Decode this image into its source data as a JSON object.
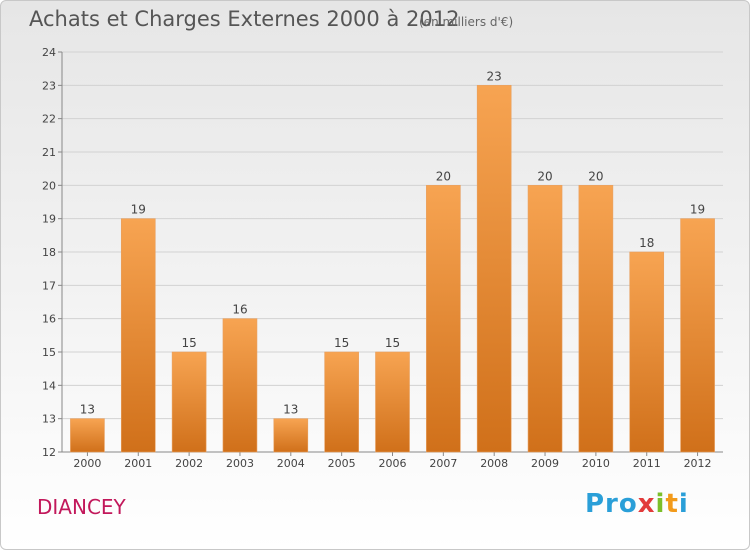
{
  "header": {
    "title": "Achats et Charges Externes 2000 à 2012",
    "subtitle": "(en milliers d'€)"
  },
  "footer": {
    "commune": "DIANCEY",
    "logo_text": "Proxiti"
  },
  "colors": {
    "bar_top": "#f7a452",
    "bar_bottom": "#d0701a",
    "accent": "#c2185b"
  },
  "chart_data": {
    "type": "bar",
    "title": "Achats et Charges Externes 2000 à 2012",
    "subtitle": "(en milliers d'€)",
    "categories": [
      "2000",
      "2001",
      "2002",
      "2003",
      "2004",
      "2005",
      "2006",
      "2007",
      "2008",
      "2009",
      "2010",
      "2011",
      "2012"
    ],
    "values": [
      13,
      19,
      15,
      16,
      13,
      15,
      15,
      20,
      23,
      20,
      20,
      18,
      19
    ],
    "ylim": [
      12,
      24
    ],
    "yticks": [
      12,
      13,
      14,
      15,
      16,
      17,
      18,
      19,
      20,
      21,
      22,
      23,
      24
    ],
    "grid": true,
    "legend": "none"
  }
}
